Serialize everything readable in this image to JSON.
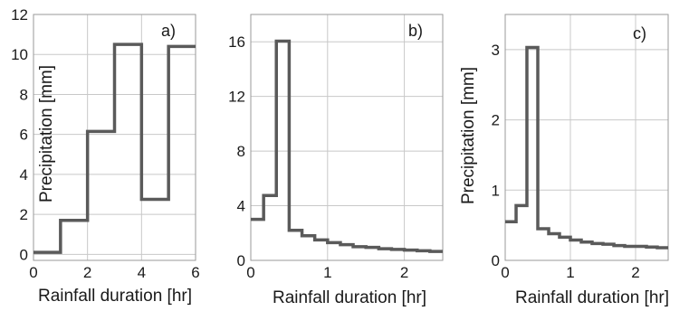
{
  "chart_data": [
    {
      "panel_label": "a)",
      "type": "line",
      "step": true,
      "xlabel": "",
      "ylabel": "Precipitation [mm]",
      "xlim": [
        0,
        6
      ],
      "ylim": [
        -0.3,
        12
      ],
      "xticks": [
        0,
        2,
        4,
        6
      ],
      "yticks": [
        0,
        2,
        4,
        6,
        8,
        10,
        12
      ],
      "grid": true,
      "edges": [
        0,
        1,
        2,
        3,
        4,
        5,
        6
      ],
      "values": [
        0.1,
        1.7,
        6.15,
        10.5,
        2.75,
        10.4
      ]
    },
    {
      "panel_label": "b)",
      "type": "line",
      "step": true,
      "xlabel": "Rainfall duration [hr]",
      "ylabel": "",
      "xlim": [
        0,
        2.5
      ],
      "ylim": [
        0,
        18
      ],
      "xticks": [
        0,
        1,
        2
      ],
      "yticks": [
        0,
        4,
        8,
        12,
        16
      ],
      "grid": true,
      "edges": [
        0,
        0.167,
        0.333,
        0.5,
        0.667,
        0.833,
        1.0,
        1.167,
        1.333,
        1.5,
        1.667,
        1.833,
        2.0,
        2.167,
        2.333,
        2.5
      ],
      "values": [
        3.0,
        4.75,
        16.05,
        2.2,
        1.8,
        1.5,
        1.3,
        1.15,
        1.0,
        0.95,
        0.85,
        0.8,
        0.75,
        0.7,
        0.65
      ]
    },
    {
      "panel_label": "c)",
      "type": "line",
      "step": true,
      "xlabel": "Rainfall duration [hr]",
      "ylabel": "Precipitation [mm]",
      "xlim": [
        0,
        2.5
      ],
      "ylim": [
        0,
        3.5
      ],
      "xticks": [
        0,
        1,
        2
      ],
      "yticks": [
        0,
        1,
        2,
        3
      ],
      "grid": true,
      "edges": [
        0,
        0.167,
        0.333,
        0.5,
        0.667,
        0.833,
        1.0,
        1.167,
        1.333,
        1.5,
        1.667,
        1.833,
        2.0,
        2.167,
        2.333,
        2.5
      ],
      "values": [
        0.55,
        0.78,
        3.03,
        0.45,
        0.38,
        0.33,
        0.29,
        0.26,
        0.24,
        0.23,
        0.21,
        0.2,
        0.2,
        0.19,
        0.18
      ]
    }
  ],
  "colors": {
    "line": "#5a5a5a",
    "grid": "#c8c8c8",
    "frame": "#9a9a9a"
  },
  "bottom_labels": [
    "Rainfall duration [hr]",
    "Rainfall duration [hr]",
    "Rainfall duration [hr]"
  ]
}
